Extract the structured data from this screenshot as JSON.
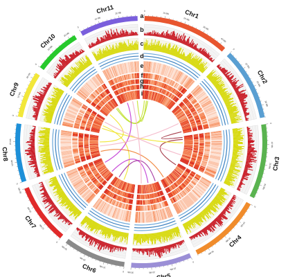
{
  "chromosomes": [
    {
      "name": "Chr1",
      "length": 43,
      "color": "#e8562f"
    },
    {
      "name": "Chr2",
      "length": 36,
      "color": "#5a9fd2"
    },
    {
      "name": "Chr3",
      "length": 37,
      "color": "#5ab350"
    },
    {
      "name": "Chr4",
      "length": 36,
      "color": "#f08c2c"
    },
    {
      "name": "Chr5",
      "length": 30,
      "color": "#9b8fd6"
    },
    {
      "name": "Chr6",
      "length": 31,
      "color": "#8a8a8a"
    },
    {
      "name": "Chr7",
      "length": 30,
      "color": "#e02a2a"
    },
    {
      "name": "Chr8",
      "length": 29,
      "color": "#1e90d8"
    },
    {
      "name": "Chr9",
      "length": 23,
      "color": "#f2e73a"
    },
    {
      "name": "Chr10",
      "length": 23,
      "color": "#27c92c"
    },
    {
      "name": "Chr11",
      "length": 29,
      "color": "#7a5fdc"
    }
  ],
  "tick_unit": "Mb",
  "tick_step": 10,
  "ring_letters": [
    "a",
    "b",
    "c",
    "d",
    "e",
    "f",
    "g",
    "h",
    "i"
  ],
  "links": [
    {
      "from": [
        "Chr1",
        3
      ],
      "to": [
        "Chr10",
        20
      ],
      "color": "#c6e22e"
    },
    {
      "from": [
        "Chr1",
        6
      ],
      "to": [
        "Chr11",
        25
      ],
      "color": "#c6e22e"
    },
    {
      "from": [
        "Chr1",
        8
      ],
      "to": [
        "Chr10",
        18
      ],
      "color": "#b7dd2a"
    },
    {
      "from": [
        "Chr3",
        2
      ],
      "to": [
        "Chr2",
        33
      ],
      "color": "#9e2a3a"
    },
    {
      "from": [
        "Chr3",
        5
      ],
      "to": [
        "Chr4",
        4
      ],
      "color": "#9e2a3a"
    },
    {
      "from": [
        "Chr9",
        12
      ],
      "to": [
        "Chr6",
        18
      ],
      "color": "#f0e42e"
    },
    {
      "from": [
        "Chr9",
        8
      ],
      "to": [
        "Chr3",
        10
      ],
      "color": "#f0e42e"
    },
    {
      "from": [
        "Chr10",
        5
      ],
      "to": [
        "Chr8",
        20
      ],
      "color": "#f0e42e"
    },
    {
      "from": [
        "Chr8",
        6
      ],
      "to": [
        "Chr4",
        30
      ],
      "color": "#f07c2c"
    },
    {
      "from": [
        "Chr11",
        10
      ],
      "to": [
        "Chr7",
        22
      ],
      "color": "#c23bd4"
    },
    {
      "from": [
        "Chr7",
        5
      ],
      "to": [
        "Chr5",
        15
      ],
      "color": "#c23bd4"
    },
    {
      "from": [
        "Chr6",
        26
      ],
      "to": [
        "Chr5",
        4
      ],
      "color": "#a2309c"
    },
    {
      "from": [
        "Chr8",
        14
      ],
      "to": [
        "Chr2",
        20
      ],
      "color": "#f4b6c8"
    },
    {
      "from": [
        "Chr9",
        18
      ],
      "to": [
        "Chr3",
        28
      ],
      "color": "#f4b6c8"
    },
    {
      "from": [
        "Chr11",
        18
      ],
      "to": [
        "Chr5",
        25
      ],
      "color": "#f4b6c8"
    }
  ]
}
